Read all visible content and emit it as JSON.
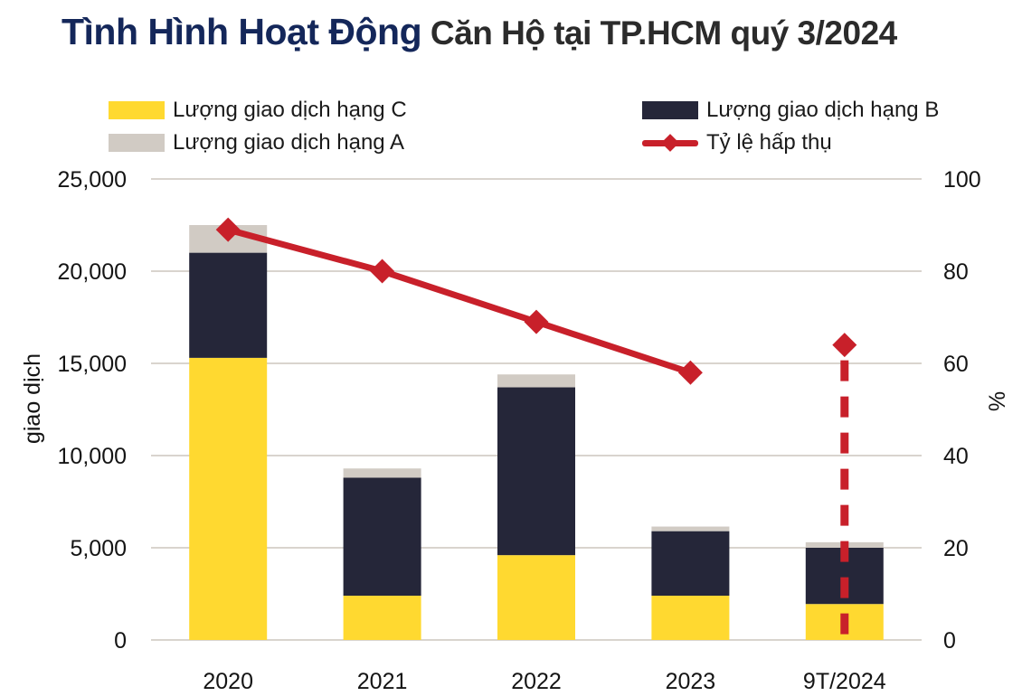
{
  "title": {
    "highlight": "Tình Hình Hoạt Động",
    "rest": " Căn Hộ tại TP.HCM quý 3/2024",
    "highlight_color": "#14275A",
    "rest_color": "#2B2B2B"
  },
  "legend": {
    "items": [
      {
        "label": "Lượng giao dịch hạng C",
        "color": "#FFD930",
        "marker": "swatch"
      },
      {
        "label": "Lượng giao dịch hạng A",
        "color": "#D1CBC4",
        "marker": "swatch"
      },
      {
        "label": "Lượng giao dịch hạng B",
        "color": "#252639",
        "marker": "swatch"
      },
      {
        "label": "Tỷ lệ hấp thụ",
        "color": "#C8202A",
        "marker": "line-diamond"
      }
    ]
  },
  "chart_data": {
    "type": "combo: stacked bar + line (secondary axis)",
    "categories": [
      "2020",
      "2021",
      "2022",
      "2023",
      "9T/2024"
    ],
    "bar_series": [
      {
        "name": "Lượng giao dịch hạng C",
        "color": "#FFD930",
        "values": [
          15300,
          2400,
          4600,
          2400,
          1950
        ]
      },
      {
        "name": "Lượng giao dịch hạng B",
        "color": "#252639",
        "values": [
          5700,
          6400,
          9100,
          3500,
          3050
        ]
      },
      {
        "name": "Lượng giao dịch hạng A",
        "color": "#D1CBC4",
        "values": [
          1500,
          500,
          700,
          250,
          300
        ]
      }
    ],
    "bar_totals": [
      22500,
      9300,
      14400,
      6150,
      5300
    ],
    "line_series": {
      "name": "Tỷ lệ hấp thụ",
      "color": "#C8202A",
      "values": [
        89,
        80,
        69,
        58,
        64
      ],
      "solid_through_index": 3,
      "last_point_detached_with_dashed_drop_line": true
    },
    "left_axis": {
      "label": "giao dịch",
      "min": 0,
      "max": 25000,
      "ticks": [
        "25,000",
        "20,000",
        "15,000",
        "10,000",
        "5,000",
        "0"
      ]
    },
    "right_axis": {
      "label": "%",
      "min": 0,
      "max": 100,
      "ticks": [
        "100",
        "80",
        "60",
        "40",
        "20",
        "0"
      ]
    },
    "gridline_color": "#D9D4CE",
    "background": "#FFFFFF",
    "legend_position": "top",
    "grid": "horizontal-only"
  }
}
